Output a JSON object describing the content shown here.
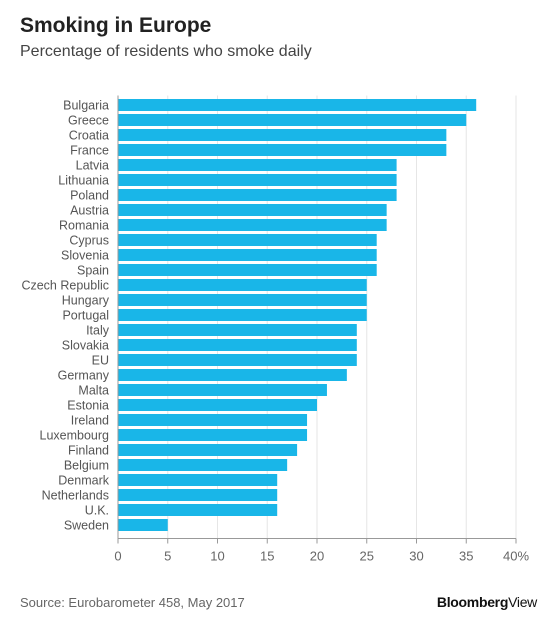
{
  "header": {
    "title": "Smoking in Europe",
    "subtitle": "Percentage of residents who smoke daily"
  },
  "footer": {
    "source": "Source: Eurobarometer 458, May 2017",
    "brand_primary": "Bloomberg",
    "brand_secondary": "View"
  },
  "colors": {
    "bar": "#19b6e8",
    "grid": "#e6e6e6",
    "axis": "#999999",
    "text": "#555555"
  },
  "chart_data": {
    "type": "bar",
    "orientation": "horizontal",
    "title": "Smoking in Europe",
    "subtitle": "Percentage of residents who smoke daily",
    "xlim": [
      0,
      40
    ],
    "xticks": [
      0,
      5,
      10,
      15,
      20,
      25,
      30,
      35,
      40
    ],
    "xtick_labels": [
      "0",
      "5",
      "10",
      "15",
      "20",
      "25",
      "30",
      "35",
      "40%"
    ],
    "grid": true,
    "categories": [
      "Bulgaria",
      "Greece",
      "Croatia",
      "France",
      "Latvia",
      "Lithuania",
      "Poland",
      "Austria",
      "Romania",
      "Cyprus",
      "Slovenia",
      "Spain",
      "Czech Republic",
      "Hungary",
      "Portugal",
      "Italy",
      "Slovakia",
      "EU",
      "Germany",
      "Malta",
      "Estonia",
      "Ireland",
      "Luxembourg",
      "Finland",
      "Belgium",
      "Denmark",
      "Netherlands",
      "U.K.",
      "Sweden"
    ],
    "values": [
      36,
      35,
      33,
      33,
      28,
      28,
      28,
      27,
      27,
      26,
      26,
      26,
      25,
      25,
      25,
      24,
      24,
      24,
      23,
      21,
      20,
      19,
      19,
      18,
      17,
      16,
      16,
      16,
      5
    ]
  }
}
